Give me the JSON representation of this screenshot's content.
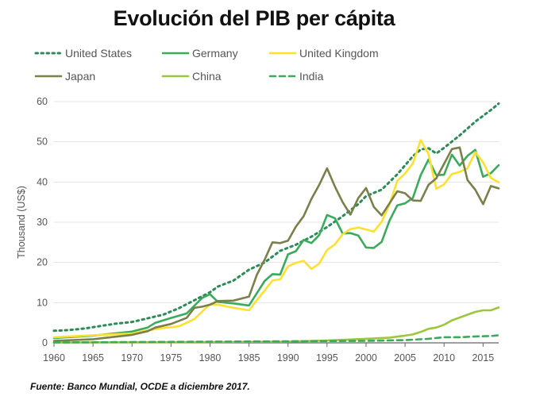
{
  "title": "Evolución del PIB per cápita",
  "source": "Fuente: Banco Mundial, OCDE a diciembre 2017.",
  "chart_data": {
    "type": "line",
    "ylabel": "Thousand (US$)",
    "xlabel": "",
    "xlim": [
      1960,
      2017
    ],
    "ylim": [
      0,
      60
    ],
    "x_ticks": [
      1960,
      1965,
      1970,
      1975,
      1980,
      1985,
      1990,
      1995,
      2000,
      2005,
      2010,
      2015
    ],
    "y_ticks": [
      0,
      10,
      20,
      30,
      40,
      50,
      60
    ],
    "grid": "horizontal",
    "legend_position": "top",
    "series": [
      {
        "name": "United States",
        "color": "#2e8b57",
        "style": "dotted",
        "points": [
          [
            1960,
            3
          ],
          [
            1962,
            3.2
          ],
          [
            1964,
            3.6
          ],
          [
            1966,
            4.2
          ],
          [
            1968,
            4.8
          ],
          [
            1970,
            5.2
          ],
          [
            1972,
            6.1
          ],
          [
            1974,
            7
          ],
          [
            1976,
            8.6
          ],
          [
            1978,
            10.6
          ],
          [
            1980,
            12.6
          ],
          [
            1981,
            14
          ],
          [
            1983,
            15.5
          ],
          [
            1985,
            18.2
          ],
          [
            1987,
            20
          ],
          [
            1989,
            22.9
          ],
          [
            1991,
            24.4
          ],
          [
            1993,
            26.4
          ],
          [
            1995,
            28.8
          ],
          [
            1997,
            31.5
          ],
          [
            1999,
            34.5
          ],
          [
            2000,
            36.5
          ],
          [
            2002,
            38.1
          ],
          [
            2004,
            41.9
          ],
          [
            2006,
            46.4
          ],
          [
            2007,
            48.1
          ],
          [
            2008,
            48.4
          ],
          [
            2009,
            47.1
          ],
          [
            2010,
            48.5
          ],
          [
            2012,
            51.6
          ],
          [
            2014,
            55
          ],
          [
            2016,
            57.9
          ],
          [
            2017,
            59.5
          ]
        ]
      },
      {
        "name": "Germany",
        "color": "#3aaa5c",
        "style": "solid",
        "points": [
          [
            1960,
            1.2
          ],
          [
            1965,
            1.8
          ],
          [
            1970,
            2.8
          ],
          [
            1972,
            3.8
          ],
          [
            1973,
            5
          ],
          [
            1975,
            6.2
          ],
          [
            1977,
            7.3
          ],
          [
            1979,
            11.2
          ],
          [
            1980,
            12.1
          ],
          [
            1981,
            10.2
          ],
          [
            1983,
            9.8
          ],
          [
            1985,
            9.3
          ],
          [
            1987,
            15.4
          ],
          [
            1988,
            17.1
          ],
          [
            1989,
            17
          ],
          [
            1990,
            22
          ],
          [
            1991,
            22.8
          ],
          [
            1992,
            25.6
          ],
          [
            1993,
            24.8
          ],
          [
            1994,
            26.8
          ],
          [
            1995,
            31.8
          ],
          [
            1996,
            31
          ],
          [
            1997,
            27.2
          ],
          [
            1998,
            27.3
          ],
          [
            1999,
            26.7
          ],
          [
            2000,
            23.7
          ],
          [
            2001,
            23.6
          ],
          [
            2002,
            25.1
          ],
          [
            2003,
            30.4
          ],
          [
            2004,
            34.2
          ],
          [
            2005,
            34.7
          ],
          [
            2006,
            36
          ],
          [
            2007,
            41.7
          ],
          [
            2008,
            45.6
          ],
          [
            2009,
            41.7
          ],
          [
            2010,
            41.8
          ],
          [
            2011,
            46.8
          ],
          [
            2012,
            44.1
          ],
          [
            2013,
            46.5
          ],
          [
            2014,
            48
          ],
          [
            2015,
            41.3
          ],
          [
            2016,
            42.2
          ],
          [
            2017,
            44.2
          ]
        ]
      },
      {
        "name": "United Kingdom",
        "color": "#ffe030",
        "style": "solid",
        "points": [
          [
            1960,
            1.4
          ],
          [
            1965,
            1.9
          ],
          [
            1970,
            2.3
          ],
          [
            1972,
            3.1
          ],
          [
            1974,
            3.7
          ],
          [
            1976,
            4.1
          ],
          [
            1978,
            5.9
          ],
          [
            1979,
            7.8
          ],
          [
            1980,
            9.6
          ],
          [
            1981,
            9.5
          ],
          [
            1983,
            8.7
          ],
          [
            1985,
            8.1
          ],
          [
            1986,
            10.6
          ],
          [
            1987,
            13
          ],
          [
            1988,
            15.5
          ],
          [
            1989,
            15.8
          ],
          [
            1990,
            19
          ],
          [
            1991,
            19.9
          ],
          [
            1992,
            20.4
          ],
          [
            1993,
            18.4
          ],
          [
            1994,
            19.7
          ],
          [
            1995,
            23.1
          ],
          [
            1996,
            24.5
          ],
          [
            1997,
            27
          ],
          [
            1998,
            28.3
          ],
          [
            1999,
            28.7
          ],
          [
            2000,
            28.2
          ],
          [
            2001,
            27.7
          ],
          [
            2002,
            30.1
          ],
          [
            2003,
            34.4
          ],
          [
            2004,
            40.3
          ],
          [
            2005,
            42.1
          ],
          [
            2006,
            44.6
          ],
          [
            2007,
            50.4
          ],
          [
            2008,
            47
          ],
          [
            2009,
            38.3
          ],
          [
            2010,
            39.4
          ],
          [
            2011,
            42
          ],
          [
            2012,
            42.5
          ],
          [
            2013,
            43.4
          ],
          [
            2014,
            47.4
          ],
          [
            2015,
            44.9
          ],
          [
            2016,
            41
          ],
          [
            2017,
            39.9
          ]
        ]
      },
      {
        "name": "Japan",
        "color": "#7b7f4a",
        "style": "solid",
        "points": [
          [
            1960,
            0.5
          ],
          [
            1965,
            0.9
          ],
          [
            1970,
            2
          ],
          [
            1972,
            2.9
          ],
          [
            1973,
            3.8
          ],
          [
            1975,
            4.7
          ],
          [
            1977,
            6.2
          ],
          [
            1978,
            8.7
          ],
          [
            1979,
            9
          ],
          [
            1980,
            9.5
          ],
          [
            1981,
            10.4
          ],
          [
            1983,
            10.5
          ],
          [
            1985,
            11.5
          ],
          [
            1986,
            16.9
          ],
          [
            1987,
            20.7
          ],
          [
            1988,
            25
          ],
          [
            1989,
            24.8
          ],
          [
            1990,
            25.4
          ],
          [
            1991,
            28.9
          ],
          [
            1992,
            31.5
          ],
          [
            1993,
            35.8
          ],
          [
            1994,
            39.3
          ],
          [
            1995,
            43.4
          ],
          [
            1996,
            38.9
          ],
          [
            1997,
            35
          ],
          [
            1998,
            31.9
          ],
          [
            1999,
            36
          ],
          [
            2000,
            38.5
          ],
          [
            2001,
            33.8
          ],
          [
            2002,
            31.7
          ],
          [
            2003,
            34.7
          ],
          [
            2004,
            37.7
          ],
          [
            2005,
            37.2
          ],
          [
            2006,
            35.4
          ],
          [
            2007,
            35.3
          ],
          [
            2008,
            39.3
          ],
          [
            2009,
            40.9
          ],
          [
            2010,
            44.5
          ],
          [
            2011,
            48.2
          ],
          [
            2012,
            48.6
          ],
          [
            2013,
            40.5
          ],
          [
            2014,
            38.1
          ],
          [
            2015,
            34.5
          ],
          [
            2016,
            39
          ],
          [
            2017,
            38.4
          ]
        ]
      },
      {
        "name": "China",
        "color": "#9cc63c",
        "style": "solid",
        "points": [
          [
            1960,
            0.1
          ],
          [
            1980,
            0.2
          ],
          [
            1990,
            0.3
          ],
          [
            1995,
            0.6
          ],
          [
            2000,
            1
          ],
          [
            2003,
            1.3
          ],
          [
            2005,
            1.8
          ],
          [
            2006,
            2.1
          ],
          [
            2007,
            2.7
          ],
          [
            2008,
            3.5
          ],
          [
            2009,
            3.8
          ],
          [
            2010,
            4.5
          ],
          [
            2011,
            5.6
          ],
          [
            2012,
            6.3
          ],
          [
            2013,
            7
          ],
          [
            2014,
            7.7
          ],
          [
            2015,
            8.1
          ],
          [
            2016,
            8.1
          ],
          [
            2017,
            8.8
          ]
        ]
      },
      {
        "name": "India",
        "color": "#3aaa5c",
        "style": "dashed",
        "points": [
          [
            1960,
            0.1
          ],
          [
            1980,
            0.3
          ],
          [
            1990,
            0.4
          ],
          [
            2000,
            0.5
          ],
          [
            2005,
            0.7
          ],
          [
            2008,
            1
          ],
          [
            2010,
            1.4
          ],
          [
            2012,
            1.4
          ],
          [
            2014,
            1.6
          ],
          [
            2016,
            1.7
          ],
          [
            2017,
            1.9
          ]
        ]
      }
    ]
  }
}
